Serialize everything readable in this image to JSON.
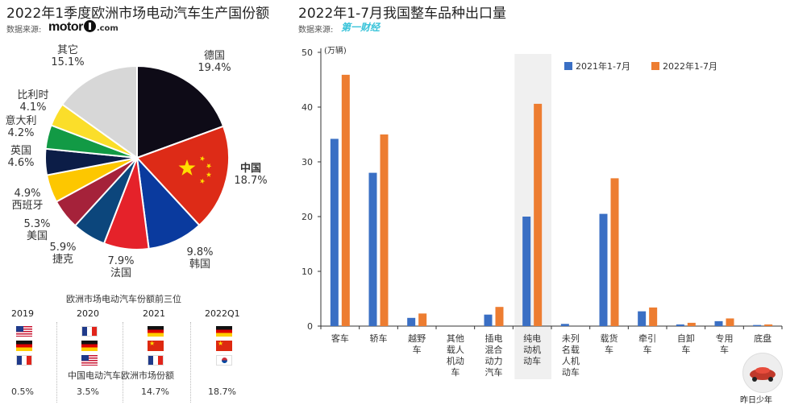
{
  "left": {
    "title": "2022年1季度欧洲市场电动汽车生产国份额",
    "source_label": "数据来源:",
    "source_logo_main": "motor",
    "source_logo_suffix": ".com",
    "slices": [
      {
        "name": "德国",
        "pct": "19.4%",
        "value": 19.4,
        "color": "#0e0b17"
      },
      {
        "name": "中国",
        "pct": "18.7%",
        "value": 18.7,
        "color": "#dd2b17"
      },
      {
        "name": "韩国",
        "pct": "9.8%",
        "value": 9.8,
        "color": "#0a3a9e"
      },
      {
        "name": "法国",
        "pct": "7.9%",
        "value": 7.9,
        "color": "#e5222a"
      },
      {
        "name": "捷克",
        "pct": "5.9%",
        "value": 5.9,
        "color": "#0c467c"
      },
      {
        "name": "美国",
        "pct": "5.3%",
        "value": 5.3,
        "color": "#a5223a"
      },
      {
        "name": "西班牙",
        "pct": "4.9%",
        "value": 4.9,
        "color": "#fdc700"
      },
      {
        "name": "英国",
        "pct": "4.6%",
        "value": 4.6,
        "color": "#0c1d47"
      },
      {
        "name": "意大利",
        "pct": "4.2%",
        "value": 4.2,
        "color": "#129a45"
      },
      {
        "name": "比利时",
        "pct": "4.1%",
        "value": 4.1,
        "color": "#fbde2a"
      },
      {
        "name": "其它",
        "pct": "15.1%",
        "value": 15.1,
        "color": "#d7d7d7"
      }
    ],
    "top3_title": "欧洲市场电动汽车份额前三位",
    "years": [
      "2019",
      "2020",
      "2021",
      "2022Q1"
    ],
    "top3_flags": [
      [
        "us",
        "de",
        "fr"
      ],
      [
        "fr",
        "de",
        "us"
      ],
      [
        "de",
        "cn",
        "fr"
      ],
      [
        "de",
        "cn",
        "kr"
      ]
    ],
    "china_share_title": "中国电动汽车欧洲市场份额",
    "china_share": [
      "0.5%",
      "3.5%",
      "14.7%",
      "18.7%"
    ]
  },
  "right": {
    "title": "2022年1-7月我国整车品种出口量",
    "source_label": "数据来源:",
    "source_logo": "第一财经",
    "watermark": "昨日少年"
  },
  "chart_data": {
    "type": "bar",
    "title": "2022年1-7月我国整车品种出口量",
    "ylabel": "(万辆)",
    "ylim": [
      0,
      50
    ],
    "yticks": [
      0,
      10,
      20,
      30,
      40,
      50
    ],
    "categories": [
      "客车",
      "轿车",
      "越野车",
      "其他载人机动车",
      "插电混合动力汽车",
      "纯电动机动车",
      "未列名载人机动车",
      "载货车",
      "牵引车",
      "自卸车",
      "专用车",
      "底盘"
    ],
    "category_lines": [
      [
        "客车"
      ],
      [
        "轿车"
      ],
      [
        "越野",
        "车"
      ],
      [
        "其他",
        "载人",
        "机动",
        "车"
      ],
      [
        "插电",
        "混合",
        "动力",
        "汽车"
      ],
      [
        "纯电",
        "动机",
        "动车"
      ],
      [
        "未列",
        "名载",
        "人机",
        "动车"
      ],
      [
        "载货",
        "车"
      ],
      [
        "牵引",
        "车"
      ],
      [
        "自卸",
        "车"
      ],
      [
        "专用",
        "车"
      ],
      [
        "底盘"
      ]
    ],
    "series": [
      {
        "name": "2021年1-7月",
        "color": "#3a6fc4",
        "values": [
          34.2,
          28,
          1.5,
          0,
          2.1,
          20,
          0.4,
          20.5,
          2.7,
          0.3,
          0.9,
          0.2
        ]
      },
      {
        "name": "2022年1-7月",
        "color": "#ed7d31",
        "values": [
          45.9,
          35,
          2.3,
          0,
          3.5,
          40.6,
          0,
          27,
          3.4,
          0.6,
          1.4,
          0.3
        ]
      }
    ],
    "highlight_category": "纯电动机动车",
    "legend_position": "top-right",
    "grid": false
  }
}
